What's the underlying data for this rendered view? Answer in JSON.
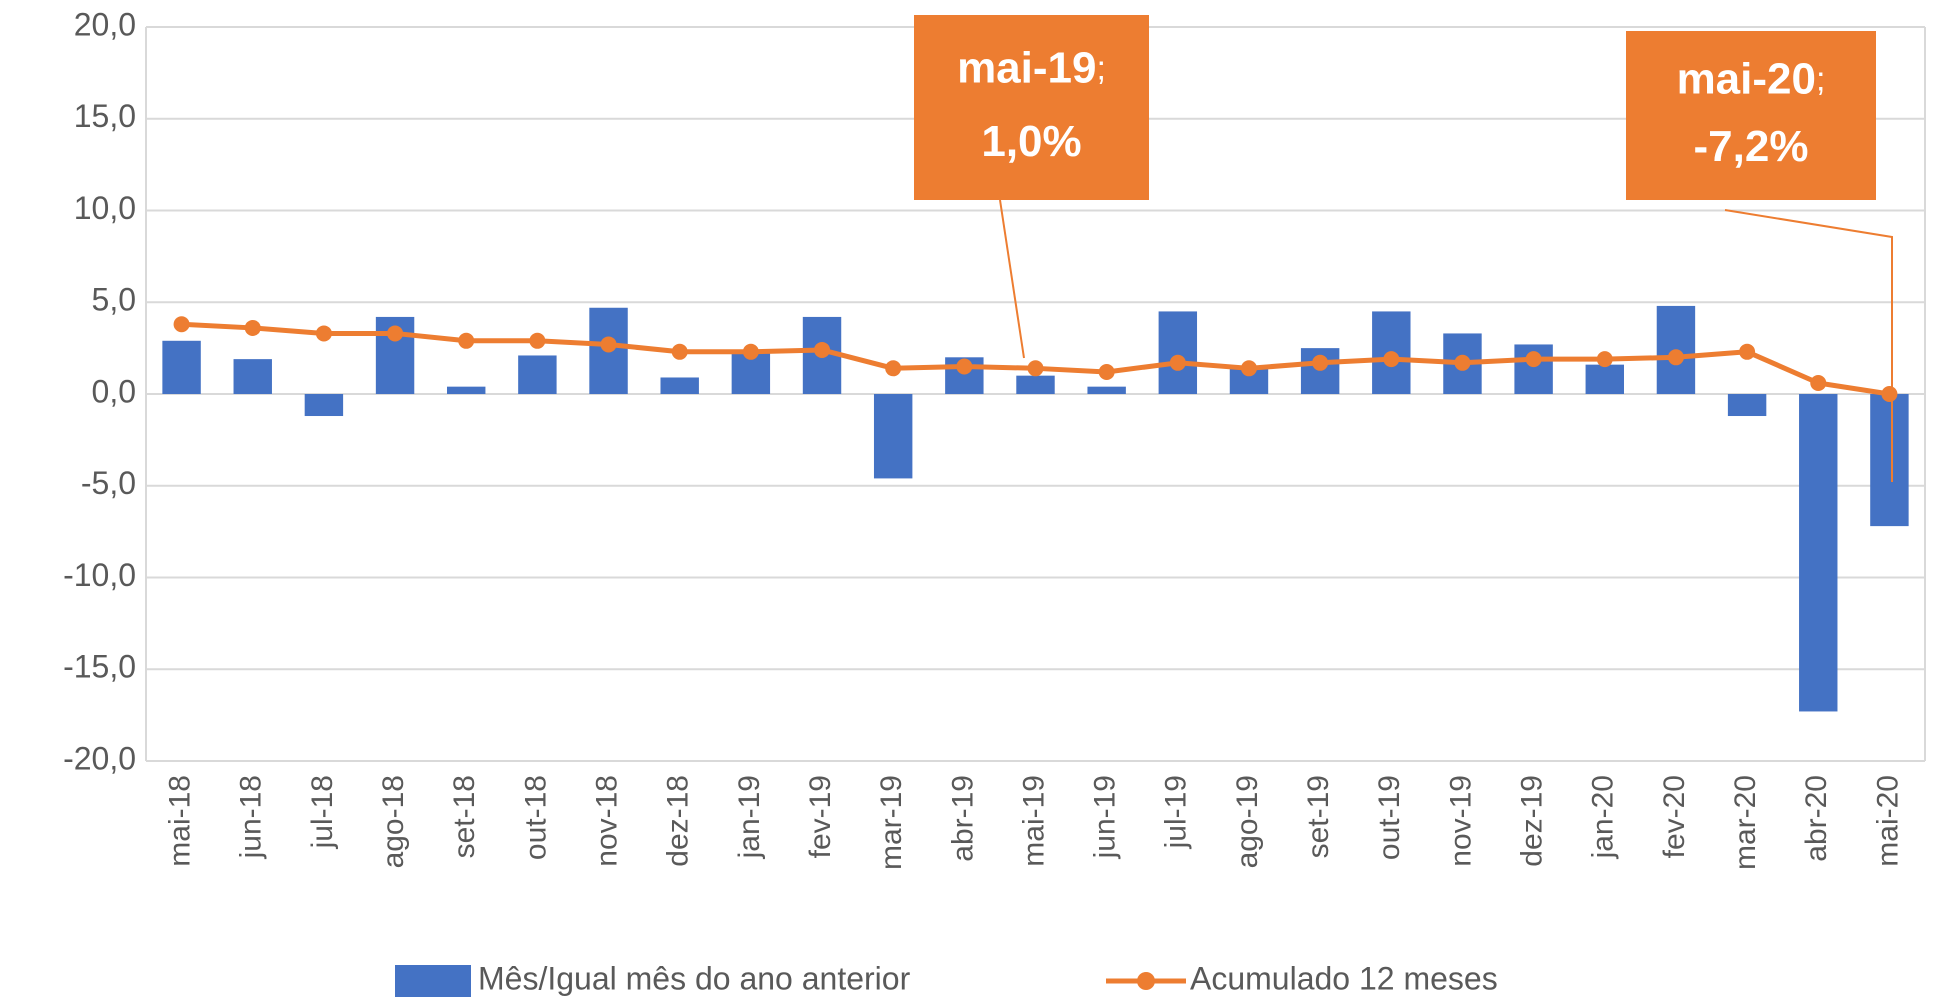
{
  "chart_data": {
    "type": "bar_line",
    "categories": [
      "mai-18",
      "jun-18",
      "jul-18",
      "ago-18",
      "set-18",
      "out-18",
      "nov-18",
      "dez-18",
      "jan-19",
      "fev-19",
      "mar-19",
      "abr-19",
      "mai-19",
      "jun-19",
      "jul-19",
      "ago-19",
      "set-19",
      "out-19",
      "nov-19",
      "dez-19",
      "jan-20",
      "fev-20",
      "mar-20",
      "abr-20",
      "mai-20"
    ],
    "series": [
      {
        "name": "Mês/Igual mês do ano anterior",
        "type": "bar",
        "color": "#4472c4",
        "values": [
          2.9,
          1.9,
          -1.2,
          4.2,
          0.4,
          2.1,
          4.7,
          0.9,
          2.3,
          4.2,
          -4.6,
          2.0,
          1.0,
          0.4,
          4.5,
          1.5,
          2.5,
          4.5,
          3.3,
          2.7,
          1.6,
          4.8,
          -1.2,
          -17.3,
          -7.2
        ]
      },
      {
        "name": "Acumulado 12 meses",
        "type": "line",
        "color": "#ed7d31",
        "values": [
          3.8,
          3.6,
          3.3,
          3.3,
          2.9,
          2.9,
          2.7,
          2.3,
          2.3,
          2.4,
          1.4,
          1.5,
          1.4,
          1.2,
          1.7,
          1.4,
          1.7,
          1.9,
          1.7,
          1.9,
          1.9,
          2.0,
          2.3,
          0.6,
          0.0
        ]
      }
    ],
    "ylim": [
      -20,
      20
    ],
    "yticks": [
      {
        "value": -20,
        "label": "-20,0"
      },
      {
        "value": -15,
        "label": "-15,0"
      },
      {
        "value": -10,
        "label": "-10,0"
      },
      {
        "value": -5,
        "label": "-5,0"
      },
      {
        "value": 0,
        "label": "0,0"
      },
      {
        "value": 5,
        "label": "5,0"
      },
      {
        "value": 10,
        "label": "10,0"
      },
      {
        "value": 15,
        "label": "15,0"
      },
      {
        "value": 20,
        "label": "20,0"
      }
    ],
    "grid": true,
    "legend": "bottom",
    "annotations": [
      {
        "category": "mai-19",
        "separator": ";",
        "text": "1,0%"
      },
      {
        "category": "mai-20",
        "separator": ";",
        "text": "-7,2%"
      }
    ]
  }
}
